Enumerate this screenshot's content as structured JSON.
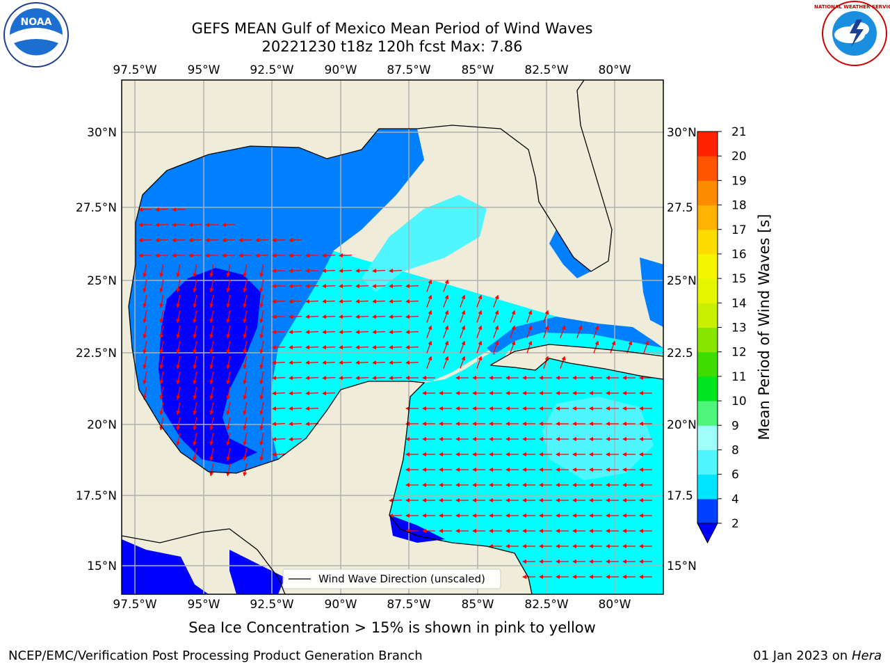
{
  "title_line1": "GEFS MEAN Gulf of Mexico Mean Period of Wind Waves",
  "title_line2": "20221230 t18z 120h fcst   Max: 7.86",
  "ice_note": "Sea Ice Concentration > 15% is shown in pink to yellow",
  "credit": "NCEP/EMC/Verification Post Processing Product Generation Branch",
  "date_text": "01 Jan 2023 on ",
  "date_host": "Hera",
  "legend_label": "Wind Wave Direction (unscaled)",
  "colorbar": {
    "label": "Mean Period of Wind Waves [s]",
    "ticks": [
      "2",
      "4",
      "6",
      "8",
      "9",
      "10",
      "11",
      "12",
      "13",
      "14",
      "15",
      "16",
      "17",
      "18",
      "19",
      "20",
      "21"
    ],
    "colors": [
      "#0040ff",
      "#00e5ff",
      "#4ff5ff",
      "#9ffffb",
      "#4df57a",
      "#00e51f",
      "#3fdc00",
      "#88e500",
      "#c8f000",
      "#e5f500",
      "#f5f500",
      "#ffdc00",
      "#ffb300",
      "#ff8c00",
      "#ff5500",
      "#ff2200",
      "#ff0000"
    ],
    "under_color": "#0000ff"
  },
  "map": {
    "lon_labels": [
      "97.5°W",
      "95°W",
      "92.5°W",
      "90°W",
      "87.5°W",
      "85°W",
      "82.5°W",
      "80°W"
    ],
    "lat_labels": [
      "30°N",
      "27.5°N",
      "25°N",
      "22.5°N",
      "20°N",
      "17.5°N",
      "15°N"
    ],
    "lat_labels_right": [
      "30°N",
      "27.5",
      "25°N",
      "22.5",
      "20°N",
      "17.5",
      "15°N"
    ],
    "land_color": "#efedda",
    "colors": {
      "c2": "#0000ff",
      "c24": "#0080ff",
      "c46": "#00ffff",
      "c68": "#4ff5ff",
      "arrow": "#ff0000"
    }
  },
  "logos": {
    "noaa": "NOAA",
    "nws": "NATIONAL WEATHER SERVICE"
  }
}
